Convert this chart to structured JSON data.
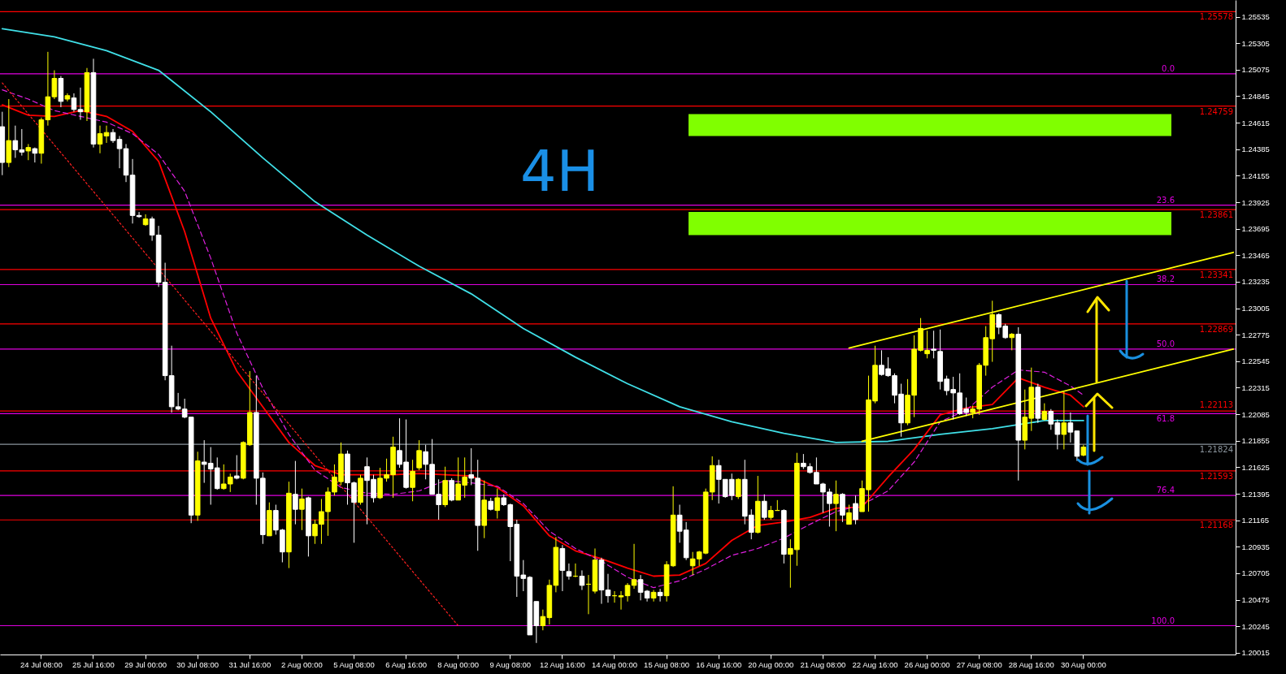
{
  "chart_data": {
    "type": "candlestick",
    "categories": [
      null,
      null,
      null,
      null,
      null,
      null,
      "24 Jul 08:00",
      null,
      null,
      null,
      null,
      null,
      null,
      null,
      "25 Jul 16:00",
      null,
      null,
      null,
      null,
      null,
      null,
      null,
      "29 Jul 00:00",
      null,
      null,
      null,
      null,
      null,
      null,
      null,
      "30 Jul 08:00",
      null,
      null,
      null,
      null,
      null,
      null,
      null,
      "31 Jul 16:00",
      null,
      null,
      null,
      null,
      null,
      null,
      null,
      "2 Aug 00:00",
      null,
      null,
      null,
      null,
      null,
      null,
      null,
      "5 Aug 08:00",
      null,
      null,
      null,
      null,
      null,
      null,
      null,
      "6 Aug 16:00",
      null,
      null,
      null,
      null,
      null,
      null,
      null,
      "8 Aug 00:00",
      null,
      null,
      null,
      null,
      null,
      null,
      null,
      "9 Aug 08:00",
      null,
      null,
      null,
      null,
      null,
      null,
      null,
      "12 Aug 16:00",
      null,
      null,
      null,
      null,
      null,
      null,
      null,
      "14 Aug 00:00",
      null,
      null,
      null,
      null,
      null,
      null,
      null,
      "15 Aug 08:00",
      null,
      null,
      null,
      null,
      null,
      null,
      null,
      "16 Aug 16:00",
      null,
      null,
      null,
      null,
      null,
      null,
      null,
      "20 Aug 00:00",
      null,
      null,
      null,
      null,
      null,
      null,
      null,
      "21 Aug 08:00",
      null,
      null,
      null,
      null,
      null,
      null,
      null,
      "22 Aug 16:00",
      null,
      null,
      null,
      null,
      null,
      null,
      null,
      "26 Aug 00:00",
      null,
      null,
      null,
      null,
      null,
      null,
      null,
      "27 Aug 08:00",
      null,
      null,
      null,
      null,
      null,
      null,
      null,
      "28 Aug 16:00",
      null,
      null,
      null,
      null,
      null,
      null,
      null,
      "30 Aug 00:00",
      null,
      null,
      null,
      null,
      null,
      null,
      null,
      null,
      null,
      null,
      null,
      null,
      null,
      null,
      null,
      null,
      null,
      null,
      null,
      null,
      null,
      null,
      null
    ],
    "ohlc": [
      [
        1.2458,
        1.2471,
        1.2416,
        1.2427
      ],
      [
        1.2427,
        1.2482,
        1.2423,
        1.2446
      ],
      [
        1.2446,
        1.2459,
        1.2431,
        1.2438
      ],
      [
        1.2438,
        1.2456,
        1.2433,
        1.2436
      ],
      [
        1.2437,
        1.2443,
        1.2429,
        1.244
      ],
      [
        1.2439,
        1.244,
        1.2427,
        1.2435
      ],
      [
        1.2435,
        1.2466,
        1.2426,
        1.2464
      ],
      [
        1.2464,
        1.2523,
        1.2459,
        1.2484
      ],
      [
        1.2484,
        1.2507,
        1.2482,
        1.25
      ],
      [
        1.25,
        1.2502,
        1.2475,
        1.248
      ],
      [
        1.2482,
        1.2487,
        1.248,
        1.2485
      ],
      [
        1.2483,
        1.2487,
        1.2471,
        1.2473
      ],
      [
        1.2473,
        1.2492,
        1.2464,
        1.2471
      ],
      [
        1.2471,
        1.2509,
        1.2463,
        1.2505
      ],
      [
        1.2505,
        1.2517,
        1.244,
        1.2443
      ],
      [
        1.2443,
        1.2459,
        1.2435,
        1.2452
      ],
      [
        1.245,
        1.2459,
        1.2444,
        1.2453
      ],
      [
        1.2453,
        1.2456,
        1.2444,
        1.2446
      ],
      [
        1.2447,
        1.245,
        1.2422,
        1.2439
      ],
      [
        1.2439,
        1.2443,
        1.241,
        1.2416
      ],
      [
        1.2416,
        1.243,
        1.2374,
        1.2381
      ],
      [
        1.2381,
        1.2384,
        1.2379,
        1.238
      ],
      [
        1.2373,
        1.2382,
        1.2372,
        1.2378
      ],
      [
        1.2378,
        1.238,
        1.2359,
        1.2364
      ],
      [
        1.2364,
        1.2372,
        1.2319,
        1.2323
      ],
      [
        1.2323,
        1.234,
        1.2238,
        1.2242
      ],
      [
        1.2242,
        1.2268,
        1.221,
        1.2215
      ],
      [
        1.2215,
        1.2227,
        1.2212,
        1.2213
      ],
      [
        1.2213,
        1.2222,
        1.2205,
        1.2206
      ],
      [
        1.2206,
        1.2206,
        1.2114,
        1.2121
      ],
      [
        1.2121,
        1.2176,
        1.2116,
        1.2168
      ],
      [
        1.2167,
        1.2186,
        1.2149,
        1.2165
      ],
      [
        1.2166,
        1.218,
        1.213,
        1.2161
      ],
      [
        1.2162,
        1.2171,
        1.2143,
        1.2144
      ],
      [
        1.2144,
        1.2165,
        1.2143,
        1.2148
      ],
      [
        1.2148,
        1.2157,
        1.2141,
        1.2154
      ],
      [
        1.2155,
        1.2173,
        1.2152,
        1.2153
      ],
      [
        1.2153,
        1.2185,
        1.2152,
        1.2184
      ],
      [
        1.2182,
        1.2246,
        1.2181,
        1.221
      ],
      [
        1.221,
        1.2242,
        1.213,
        1.2153
      ],
      [
        1.2153,
        1.2158,
        1.2096,
        1.2104
      ],
      [
        1.2103,
        1.2132,
        1.2103,
        1.2125
      ],
      [
        1.2125,
        1.213,
        1.2104,
        1.2108
      ],
      [
        1.2108,
        1.2109,
        1.208,
        1.2089
      ],
      [
        1.2089,
        1.215,
        1.2075,
        1.214
      ],
      [
        1.2139,
        1.2168,
        1.2113,
        1.2126
      ],
      [
        1.2126,
        1.2144,
        1.2108,
        1.2135
      ],
      [
        1.2136,
        1.2137,
        1.2085,
        1.2103
      ],
      [
        1.2103,
        1.2117,
        1.2096,
        1.2113
      ],
      [
        1.2113,
        1.2135,
        1.2096,
        1.2124
      ],
      [
        1.2124,
        1.2145,
        1.2103,
        1.2141
      ],
      [
        1.2141,
        1.2165,
        1.2138,
        1.2154
      ],
      [
        1.215,
        1.2184,
        1.2147,
        1.2174
      ],
      [
        1.2174,
        1.2177,
        1.213,
        1.2149
      ],
      [
        1.2149,
        1.215,
        1.2097,
        1.2132
      ],
      [
        1.2132,
        1.2156,
        1.213,
        1.2153
      ],
      [
        1.2163,
        1.2171,
        1.2113,
        1.2151
      ],
      [
        1.2152,
        1.2156,
        1.2132,
        1.2136
      ],
      [
        1.2136,
        1.2162,
        1.2135,
        1.2153
      ],
      [
        1.2153,
        1.217,
        1.215,
        1.2156
      ],
      [
        1.2156,
        1.2189,
        1.2136,
        1.218
      ],
      [
        1.2177,
        1.2205,
        1.2162,
        1.2165
      ],
      [
        1.2167,
        1.2204,
        1.2144,
        1.2145
      ],
      [
        1.2145,
        1.2169,
        1.2133,
        1.2159
      ],
      [
        1.2162,
        1.2186,
        1.216,
        1.2177
      ],
      [
        1.2176,
        1.2182,
        1.2152,
        1.2165
      ],
      [
        1.2165,
        1.2187,
        1.2139,
        1.2139
      ],
      [
        1.2139,
        1.2152,
        1.2117,
        1.213
      ],
      [
        1.213,
        1.2163,
        1.2128,
        1.2151
      ],
      [
        1.2151,
        1.2153,
        1.2133,
        1.2134
      ],
      [
        1.2134,
        1.2171,
        1.2134,
        1.2148
      ],
      [
        1.2147,
        1.2171,
        1.2136,
        1.2154
      ],
      [
        1.2156,
        1.2179,
        1.2147,
        1.2153
      ],
      [
        1.2153,
        1.2169,
        1.209,
        1.2112
      ],
      [
        1.2112,
        1.2151,
        1.2101,
        1.2134
      ],
      [
        1.2133,
        1.2136,
        1.2125,
        1.2126
      ],
      [
        1.2125,
        1.2144,
        1.2118,
        1.2136
      ],
      [
        1.2136,
        1.2139,
        1.2129,
        1.213
      ],
      [
        1.213,
        1.2131,
        1.2081,
        1.2111
      ],
      [
        1.2113,
        1.2117,
        1.205,
        1.2068
      ],
      [
        1.2069,
        1.2082,
        1.2055,
        1.2066
      ],
      [
        1.2067,
        1.2068,
        1.2017,
        1.2017
      ],
      [
        1.2046,
        1.2046,
        1.201,
        1.2025
      ],
      [
        1.2025,
        1.2039,
        1.2021,
        1.2033
      ],
      [
        1.2032,
        1.2065,
        1.2026,
        1.206
      ],
      [
        1.206,
        1.2102,
        1.2054,
        1.2093
      ],
      [
        1.2092,
        1.2095,
        1.2055,
        1.2073
      ],
      [
        1.2072,
        1.2079,
        1.2065,
        1.2068
      ],
      [
        1.2068,
        1.2079,
        1.2067,
        1.2068
      ],
      [
        1.2068,
        1.2073,
        1.2056,
        1.206
      ],
      [
        1.2061,
        1.2069,
        1.2035,
        1.2061
      ],
      [
        1.2055,
        1.2092,
        1.2053,
        1.2082
      ],
      [
        1.2082,
        1.2084,
        1.2044,
        1.2056
      ],
      [
        1.2056,
        1.207,
        1.2045,
        1.2051
      ],
      [
        1.2051,
        1.2055,
        1.2045,
        1.2051
      ],
      [
        1.205,
        1.2055,
        1.2039,
        1.2051
      ],
      [
        1.2051,
        1.2062,
        1.2046,
        1.206
      ],
      [
        1.206,
        1.2096,
        1.2057,
        1.2065
      ],
      [
        1.2065,
        1.2069,
        1.2047,
        1.2054
      ],
      [
        1.2055,
        1.2056,
        1.2046,
        1.2049
      ],
      [
        1.2049,
        1.2056,
        1.2046,
        1.2054
      ],
      [
        1.2054,
        1.2057,
        1.2046,
        1.2051
      ],
      [
        1.2051,
        1.2081,
        1.2046,
        1.2078
      ],
      [
        1.2077,
        1.2146,
        1.2076,
        1.2121
      ],
      [
        1.2121,
        1.213,
        1.2097,
        1.2107
      ],
      [
        1.2108,
        1.2115,
        1.2082,
        1.2084
      ],
      [
        1.2077,
        1.2089,
        1.2069,
        1.2083
      ],
      [
        1.2083,
        1.209,
        1.2077,
        1.2089
      ],
      [
        1.2088,
        1.2144,
        1.2087,
        1.2141
      ],
      [
        1.2141,
        1.2172,
        1.2134,
        1.2164
      ],
      [
        1.2164,
        1.2169,
        1.2131,
        1.2152
      ],
      [
        1.2152,
        1.2152,
        1.2136,
        1.2137
      ],
      [
        1.2152,
        1.2157,
        1.2134,
        1.2138
      ],
      [
        1.2137,
        1.2153,
        1.2135,
        1.2152
      ],
      [
        1.2152,
        1.2169,
        1.2113,
        1.212
      ],
      [
        1.2121,
        1.2126,
        1.21,
        1.2106
      ],
      [
        1.2106,
        1.2155,
        1.2105,
        1.2133
      ],
      [
        1.2133,
        1.2139,
        1.2117,
        1.2119
      ],
      [
        1.2119,
        1.2129,
        1.2117,
        1.2125
      ],
      [
        1.2125,
        1.2134,
        1.2125,
        1.2125
      ],
      [
        1.2125,
        1.2126,
        1.2079,
        1.2087
      ],
      [
        1.2087,
        1.21,
        1.2058,
        1.2092
      ],
      [
        1.2091,
        1.2175,
        1.2077,
        1.2166
      ],
      [
        1.2166,
        1.2174,
        1.2161,
        1.2163
      ],
      [
        1.2163,
        1.2166,
        1.2157,
        1.2158
      ],
      [
        1.2158,
        1.2171,
        1.2148,
        1.2148
      ],
      [
        1.2148,
        1.2149,
        1.2123,
        1.2141
      ],
      [
        1.2141,
        1.2144,
        1.2111,
        1.2131
      ],
      [
        1.2131,
        1.2151,
        1.2107,
        1.2139
      ],
      [
        1.2139,
        1.214,
        1.2115,
        1.2121
      ],
      [
        1.2113,
        1.213,
        1.2113,
        1.2123
      ],
      [
        1.2131,
        1.2138,
        1.2113,
        1.2117
      ],
      [
        1.2124,
        1.2151,
        1.2124,
        1.2144
      ],
      [
        1.2143,
        1.2242,
        1.2124,
        1.2221
      ],
      [
        1.222,
        1.2268,
        1.2218,
        1.2251
      ],
      [
        1.2251,
        1.2264,
        1.2242,
        1.2243
      ],
      [
        1.2248,
        1.2258,
        1.2241,
        1.2242
      ],
      [
        1.2242,
        1.2244,
        1.2218,
        1.2225
      ],
      [
        1.2226,
        1.2235,
        1.2189,
        1.2201
      ],
      [
        1.2201,
        1.2239,
        1.2199,
        1.2225
      ],
      [
        1.2225,
        1.2277,
        1.2206,
        1.2265
      ],
      [
        1.2264,
        1.2292,
        1.2263,
        1.2283
      ],
      [
        1.2261,
        1.2281,
        1.2257,
        1.2264
      ],
      [
        1.2265,
        1.2281,
        1.2257,
        1.2264
      ],
      [
        1.2263,
        1.2282,
        1.223,
        1.2237
      ],
      [
        1.2239,
        1.2242,
        1.2225,
        1.2229
      ],
      [
        1.223,
        1.2241,
        1.2204,
        1.2227
      ],
      [
        1.2227,
        1.2244,
        1.2208,
        1.2209
      ],
      [
        1.2213,
        1.2223,
        1.2207,
        1.221
      ],
      [
        1.221,
        1.2216,
        1.2205,
        1.2213
      ],
      [
        1.2213,
        1.2253,
        1.2208,
        1.2251
      ],
      [
        1.2251,
        1.2285,
        1.2242,
        1.2275
      ],
      [
        1.2274,
        1.2307,
        1.2254,
        1.2295
      ],
      [
        1.2295,
        1.2296,
        1.2278,
        1.2284
      ],
      [
        1.2285,
        1.2287,
        1.2274,
        1.2275
      ],
      [
        1.2275,
        1.2279,
        1.2264,
        1.2278
      ],
      [
        1.2278,
        1.2284,
        1.2151,
        1.2186
      ],
      [
        1.2186,
        1.223,
        1.2178,
        1.2206
      ],
      [
        1.2205,
        1.2249,
        1.2194,
        1.2232
      ],
      [
        1.2232,
        1.2235,
        1.2201,
        1.2205
      ],
      [
        1.2204,
        1.2218,
        1.2203,
        1.2211
      ],
      [
        1.2211,
        1.2213,
        1.2195,
        1.22
      ],
      [
        1.2201,
        1.2204,
        1.2178,
        1.2191
      ],
      [
        1.2191,
        1.2228,
        1.2178,
        1.2201
      ],
      [
        1.2201,
        1.221,
        1.2184,
        1.2193
      ],
      [
        1.2194,
        1.2194,
        1.2168,
        1.2172
      ],
      [
        1.2173,
        1.2182,
        1.2172,
        1.218
      ],
      null,
      null,
      null,
      null,
      null,
      null,
      null,
      null,
      null,
      null,
      null,
      null,
      null,
      null,
      null,
      null,
      null,
      null,
      null,
      null,
      null,
      null,
      null
    ],
    "series": [
      {
        "type": "line",
        "color": "#40e0e8",
        "line_style": "solid",
        "values": [
          1.2543,
          null,
          null,
          null,
          null,
          null,
          null,
          null,
          1.2536,
          null,
          null,
          null,
          null,
          null,
          null,
          null,
          1.2524,
          null,
          null,
          null,
          null,
          null,
          null,
          null,
          1.2507,
          null,
          null,
          null,
          null,
          null,
          null,
          null,
          1.2471,
          null,
          null,
          null,
          null,
          null,
          null,
          null,
          1.2431,
          null,
          null,
          null,
          null,
          null,
          null,
          null,
          1.2393,
          null,
          null,
          null,
          null,
          null,
          null,
          null,
          1.2364,
          null,
          null,
          null,
          null,
          null,
          null,
          null,
          1.2337,
          null,
          null,
          null,
          null,
          null,
          null,
          null,
          1.2313,
          null,
          null,
          null,
          null,
          null,
          null,
          null,
          1.2283,
          null,
          null,
          null,
          null,
          null,
          null,
          null,
          1.2258,
          null,
          null,
          null,
          null,
          null,
          null,
          null,
          1.2235,
          null,
          null,
          null,
          null,
          null,
          null,
          null,
          1.2215,
          null,
          null,
          null,
          null,
          null,
          null,
          null,
          1.2202,
          null,
          null,
          null,
          null,
          null,
          null,
          null,
          1.2192,
          null,
          null,
          null,
          null,
          null,
          null,
          null,
          1.2184,
          null,
          null,
          null,
          null,
          null,
          null,
          null,
          1.2185,
          null,
          null,
          null,
          null,
          null,
          null,
          null,
          1.2191,
          null,
          null,
          null,
          null,
          null,
          null,
          null,
          1.2196,
          null,
          null,
          null,
          null,
          null,
          null,
          null,
          1.2203,
          null,
          null,
          null,
          null,
          null,
          1.2203,
          null,
          null,
          null,
          null,
          null,
          null,
          null,
          null,
          null,
          null,
          null,
          null,
          null,
          null,
          null,
          null,
          null,
          null,
          null,
          null,
          null,
          null,
          null
        ]
      },
      {
        "type": "line",
        "color": "#ff0000",
        "line_style": "solid",
        "values": [
          1.2477,
          null,
          null,
          null,
          1.2468,
          null,
          null,
          null,
          1.2467,
          null,
          null,
          null,
          1.2472,
          null,
          null,
          null,
          1.2467,
          null,
          null,
          null,
          1.2454,
          null,
          null,
          null,
          1.2428,
          null,
          null,
          null,
          1.2367,
          null,
          null,
          null,
          1.2292,
          null,
          null,
          null,
          1.2246,
          null,
          null,
          null,
          1.2215,
          null,
          null,
          null,
          1.2184,
          null,
          null,
          null,
          1.2164,
          null,
          null,
          null,
          1.2156,
          null,
          null,
          null,
          1.2156,
          null,
          null,
          null,
          1.2156,
          null,
          null,
          null,
          1.2157,
          null,
          null,
          null,
          1.2156,
          null,
          null,
          null,
          1.2155,
          null,
          null,
          null,
          1.2145,
          null,
          null,
          null,
          1.2129,
          null,
          null,
          null,
          1.2103,
          null,
          null,
          null,
          1.209,
          null,
          null,
          null,
          1.2083,
          null,
          null,
          null,
          1.2075,
          null,
          null,
          null,
          1.2068,
          null,
          null,
          null,
          1.2069,
          null,
          null,
          null,
          1.2079,
          null,
          null,
          null,
          1.2099,
          null,
          null,
          null,
          1.2112,
          null,
          null,
          null,
          1.2115,
          null,
          null,
          null,
          1.2119,
          null,
          null,
          null,
          1.2127,
          null,
          null,
          null,
          1.2128,
          null,
          null,
          null,
          1.2154,
          null,
          null,
          null,
          1.2178,
          null,
          null,
          null,
          1.2208,
          null,
          null,
          null,
          1.2214,
          null,
          null,
          null,
          1.2217,
          null,
          null,
          null,
          1.224,
          null,
          null,
          null,
          1.2232,
          null,
          null,
          null,
          1.2225,
          null,
          1.2215,
          null,
          null,
          null,
          null,
          null,
          null,
          null,
          null,
          null,
          null,
          null,
          null,
          null,
          null,
          null,
          null,
          null,
          null,
          null,
          null,
          null,
          null,
          null
        ]
      },
      {
        "type": "line",
        "color": "#e020e0",
        "line_style": "dashed",
        "values": [
          1.249,
          null,
          null,
          null,
          1.2482,
          null,
          null,
          null,
          1.2472,
          null,
          null,
          null,
          1.2467,
          null,
          null,
          null,
          1.2462,
          null,
          null,
          null,
          1.2452,
          null,
          null,
          null,
          1.2434,
          null,
          null,
          null,
          1.2402,
          null,
          null,
          null,
          1.2344,
          null,
          null,
          null,
          1.2279,
          null,
          null,
          null,
          1.2231,
          null,
          null,
          null,
          1.2191,
          null,
          null,
          null,
          1.216,
          null,
          null,
          null,
          1.2145,
          null,
          null,
          null,
          1.214,
          null,
          null,
          null,
          1.2139,
          null,
          null,
          null,
          1.2142,
          null,
          null,
          null,
          1.2151,
          null,
          null,
          null,
          1.2149,
          null,
          null,
          null,
          1.2146,
          null,
          null,
          null,
          1.2131,
          null,
          null,
          null,
          1.2107,
          null,
          null,
          null,
          1.2092,
          null,
          null,
          null,
          1.2081,
          null,
          null,
          null,
          1.2067,
          null,
          null,
          null,
          1.2058,
          null,
          null,
          null,
          1.2064,
          null,
          null,
          null,
          1.2074,
          null,
          null,
          null,
          1.2086,
          null,
          null,
          null,
          1.2092,
          null,
          null,
          null,
          1.2101,
          null,
          null,
          null,
          1.2113,
          null,
          null,
          null,
          1.2124,
          null,
          null,
          null,
          1.213,
          null,
          null,
          null,
          1.2142,
          null,
          null,
          null,
          1.2167,
          null,
          null,
          null,
          1.2202,
          null,
          null,
          null,
          1.2212,
          null,
          null,
          null,
          1.2232,
          null,
          null,
          null,
          1.2247,
          null,
          null,
          null,
          1.2245,
          null,
          null,
          null,
          1.2233,
          null,
          1.2225,
          null,
          null,
          null,
          null,
          null,
          null,
          null,
          null,
          null,
          null,
          null,
          null,
          null,
          null,
          null,
          null,
          null,
          null,
          null,
          null,
          null,
          null,
          null
        ]
      },
      {
        "type": "line",
        "color": "#ff2020",
        "line_style": "dotted",
        "values": [
          1.2496,
          null,
          null,
          null,
          null,
          null,
          null,
          null,
          null,
          null,
          null,
          null,
          null,
          null,
          null,
          null,
          null,
          null,
          null,
          null,
          null,
          null,
          null,
          null,
          null,
          null,
          null,
          null,
          null,
          null,
          null,
          null,
          null,
          null,
          null,
          null,
          null,
          null,
          null,
          null,
          null,
          null,
          null,
          null,
          null,
          null,
          null,
          null,
          null,
          null,
          null,
          null,
          null,
          null,
          null,
          null,
          null,
          null,
          null,
          null,
          null,
          null,
          null,
          null,
          null,
          null,
          null,
          null,
          null,
          null,
          1.2025,
          null,
          null,
          null,
          null,
          null,
          null,
          null,
          null,
          null,
          null,
          null,
          null,
          null,
          null,
          null,
          null,
          null,
          null,
          null,
          null,
          null,
          null,
          null,
          null,
          null,
          null,
          null,
          null,
          null,
          null,
          null,
          null,
          null,
          null,
          null,
          null,
          null,
          null,
          null,
          null,
          null,
          null,
          null,
          null,
          null,
          null,
          null,
          null,
          null,
          null,
          null,
          null,
          null,
          null,
          null,
          null,
          null,
          null,
          null,
          null,
          null,
          null,
          null,
          null,
          null,
          null,
          null,
          null,
          null,
          null,
          null,
          null,
          null,
          null,
          null,
          null,
          null,
          null,
          null,
          null,
          null,
          null,
          null,
          null,
          null,
          null,
          null,
          null,
          null,
          null,
          null,
          null,
          null,
          null,
          null,
          null,
          null,
          null,
          null,
          null,
          null,
          null,
          null,
          null,
          null,
          null,
          null,
          null,
          null,
          null,
          null,
          null,
          null,
          null,
          null,
          null,
          null,
          null,
          null
        ]
      },
      {
        "type": "line",
        "color": "#ffff00",
        "line_style": "solid",
        "values": [
          null,
          null,
          null,
          null,
          null,
          null,
          null,
          null,
          null,
          null,
          null,
          null,
          null,
          null,
          null,
          null,
          null,
          null,
          null,
          null,
          null,
          null,
          null,
          null,
          null,
          null,
          null,
          null,
          null,
          null,
          null,
          null,
          null,
          null,
          null,
          null,
          null,
          null,
          null,
          null,
          null,
          null,
          null,
          null,
          null,
          null,
          null,
          null,
          null,
          null,
          null,
          null,
          null,
          null,
          null,
          null,
          null,
          null,
          null,
          null,
          null,
          null,
          null,
          null,
          null,
          null,
          null,
          null,
          null,
          null,
          null,
          null,
          null,
          null,
          null,
          null,
          null,
          null,
          null,
          null,
          null,
          null,
          null,
          null,
          null,
          null,
          null,
          null,
          null,
          null,
          null,
          null,
          null,
          null,
          null,
          null,
          null,
          null,
          null,
          null,
          null,
          null,
          null,
          null,
          null,
          null,
          null,
          null,
          null,
          null,
          null,
          null,
          null,
          null,
          null,
          null,
          null,
          null,
          null,
          null,
          null,
          null,
          null,
          null,
          null,
          null,
          null,
          null,
          null,
          null,
          1.2266,
          null,
          null,
          null,
          null,
          null,
          null,
          null,
          null,
          null,
          null,
          null,
          null,
          null,
          null,
          null,
          null,
          null,
          null,
          null,
          null,
          null,
          null,
          null,
          null,
          null,
          null,
          null,
          null,
          null,
          null,
          null,
          null,
          null,
          null,
          null,
          null,
          null,
          null,
          null,
          null,
          null,
          null,
          null,
          null,
          null,
          null,
          null,
          null,
          null,
          null,
          null,
          null,
          null,
          null,
          null,
          null,
          null,
          null,
          1.2349
        ]
      },
      {
        "type": "line",
        "color": "#ffff00",
        "line_style": "solid",
        "values": [
          null,
          null,
          null,
          null,
          null,
          null,
          null,
          null,
          null,
          null,
          null,
          null,
          null,
          null,
          null,
          null,
          null,
          null,
          null,
          null,
          null,
          null,
          null,
          null,
          null,
          null,
          null,
          null,
          null,
          null,
          null,
          null,
          null,
          null,
          null,
          null,
          null,
          null,
          null,
          null,
          null,
          null,
          null,
          null,
          null,
          null,
          null,
          null,
          null,
          null,
          null,
          null,
          null,
          null,
          null,
          null,
          null,
          null,
          null,
          null,
          null,
          null,
          null,
          null,
          null,
          null,
          null,
          null,
          null,
          null,
          null,
          null,
          null,
          null,
          null,
          null,
          null,
          null,
          null,
          null,
          null,
          null,
          null,
          null,
          null,
          null,
          null,
          null,
          null,
          null,
          null,
          null,
          null,
          null,
          null,
          null,
          null,
          null,
          null,
          null,
          null,
          null,
          null,
          null,
          null,
          null,
          null,
          null,
          null,
          null,
          null,
          null,
          null,
          null,
          null,
          null,
          null,
          null,
          null,
          null,
          null,
          null,
          null,
          null,
          null,
          null,
          null,
          null,
          null,
          null,
          null,
          null,
          1.2185,
          null,
          null,
          null,
          null,
          null,
          null,
          null,
          null,
          null,
          null,
          null,
          null,
          null,
          null,
          null,
          null,
          null,
          null,
          null,
          null,
          null,
          null,
          null,
          null,
          null,
          null,
          null,
          null,
          null,
          null,
          null,
          null,
          null,
          null,
          null,
          null,
          null,
          null,
          null,
          null,
          null,
          null,
          null,
          null,
          null,
          null,
          null,
          null,
          null,
          null,
          null,
          null,
          null,
          null,
          null,
          null,
          1.2265
        ]
      }
    ],
    "ylim": [
      1.2,
      1.2568
    ],
    "yticks": [
      1.20015,
      1.20245,
      1.20475,
      1.20705,
      1.20935,
      1.21165,
      1.21395,
      1.21625,
      1.21855,
      1.22085,
      1.22315,
      1.22545,
      1.22775,
      1.23005,
      1.23235,
      1.23465,
      1.23695,
      1.23925,
      1.24155,
      1.24385,
      1.24615,
      1.24845,
      1.25075,
      1.25305,
      1.25535
    ],
    "ref_lines": [
      {
        "axis": "y",
        "value": 1.25578,
        "label": "1.25578",
        "color": "#ff0000"
      },
      {
        "axis": "y",
        "value": 1.24759,
        "label": "1.24759",
        "color": "#ff0000"
      },
      {
        "axis": "y",
        "value": 1.23861,
        "label": "1.23861",
        "color": "#ff0000"
      },
      {
        "axis": "y",
        "value": 1.23341,
        "label": "1.23341",
        "color": "#ff0000"
      },
      {
        "axis": "y",
        "value": 1.22869,
        "label": "1.22869",
        "color": "#ff0000"
      },
      {
        "axis": "y",
        "value": 1.22113,
        "label": "1.22113",
        "color": "#ff0000"
      },
      {
        "axis": "y",
        "value": 1.21593,
        "label": "1.21593",
        "color": "#ff0000"
      },
      {
        "axis": "y",
        "value": 1.21168,
        "label": "1.21168",
        "color": "#ff0000"
      },
      {
        "axis": "y",
        "value": 1.21824,
        "label": "1.21824",
        "color": "#8a949c"
      },
      {
        "axis": "y",
        "value": 1.2504,
        "color": "#e000e0"
      },
      {
        "axis": "y",
        "value": 1.239,
        "color": "#e000e0"
      },
      {
        "axis": "y",
        "value": 1.2321,
        "color": "#e000e0"
      },
      {
        "axis": "y",
        "value": 1.2265,
        "color": "#e000e0"
      },
      {
        "axis": "y",
        "value": 1.2209,
        "color": "#e000e0"
      },
      {
        "axis": "y",
        "value": 1.2138,
        "color": "#e000e0"
      },
      {
        "axis": "y",
        "value": 1.2025,
        "color": "#e000e0"
      }
    ],
    "bands": [
      {
        "axis": "y",
        "from": 1.245,
        "to": 1.2469,
        "color": "#80ff00"
      },
      {
        "axis": "y",
        "from": 1.2364,
        "to": 1.2384,
        "color": "#80ff00"
      }
    ],
    "annotations": [
      "4H",
      {
        "text": "0.0",
        "y": 1.2504
      },
      {
        "text": "23.6",
        "y": 1.239
      },
      {
        "text": "38.2",
        "y": 1.2321
      },
      {
        "text": "50.0",
        "y": 1.2265
      },
      {
        "text": "61.8",
        "y": 1.2209
      },
      {
        "text": "76.4",
        "y": 1.2138
      },
      {
        "text": "100.0",
        "y": 1.2025
      }
    ]
  }
}
